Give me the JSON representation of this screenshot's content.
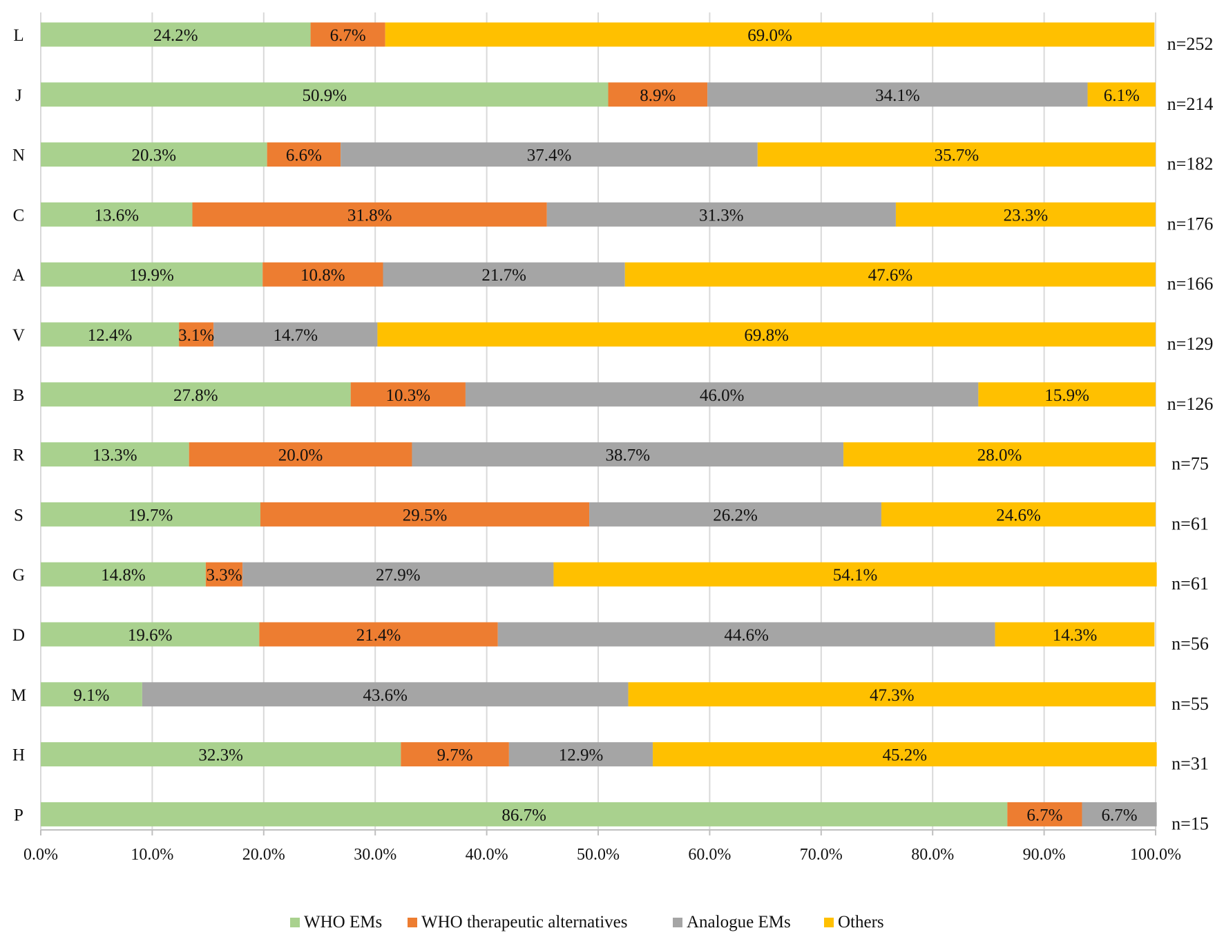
{
  "chart_data": {
    "type": "bar",
    "orientation": "horizontal",
    "stacked": true,
    "percent": true,
    "xlim": [
      0,
      100
    ],
    "xticks": [
      "0.0%",
      "10.0%",
      "20.0%",
      "30.0%",
      "40.0%",
      "50.0%",
      "60.0%",
      "70.0%",
      "80.0%",
      "90.0%",
      "100.0%"
    ],
    "grid": "vertical",
    "legend_position": "bottom",
    "series": [
      {
        "name": "WHO EMs",
        "color": "#a9d18e"
      },
      {
        "name": "WHO therapeutic alternatives",
        "color": "#ed7d31"
      },
      {
        "name": "Analogue EMs",
        "color": "#a5a5a5"
      },
      {
        "name": "Others",
        "color": "#ffc000"
      }
    ],
    "rows": [
      {
        "category": "L",
        "n": "n=252",
        "values": [
          24.2,
          6.7,
          0,
          69.0
        ],
        "labels": [
          "24.2%",
          "6.7%",
          "",
          "69.0%"
        ]
      },
      {
        "category": "J",
        "n": "n=214",
        "values": [
          50.9,
          8.9,
          34.1,
          6.1
        ],
        "labels": [
          "50.9%",
          "8.9%",
          "34.1%",
          "6.1%"
        ]
      },
      {
        "category": "N",
        "n": "n=182",
        "values": [
          20.3,
          6.6,
          37.4,
          35.7
        ],
        "labels": [
          "20.3%",
          "6.6%",
          "37.4%",
          "35.7%"
        ]
      },
      {
        "category": "C",
        "n": "n=176",
        "values": [
          13.6,
          31.8,
          31.3,
          23.3
        ],
        "labels": [
          "13.6%",
          "31.8%",
          "31.3%",
          "23.3%"
        ]
      },
      {
        "category": "A",
        "n": "n=166",
        "values": [
          19.9,
          10.8,
          21.7,
          47.6
        ],
        "labels": [
          "19.9%",
          "10.8%",
          "21.7%",
          "47.6%"
        ]
      },
      {
        "category": "V",
        "n": "n=129",
        "values": [
          12.4,
          3.1,
          14.7,
          69.8
        ],
        "labels": [
          "12.4%",
          "3.1%",
          "14.7%",
          "69.8%"
        ]
      },
      {
        "category": "B",
        "n": "n=126",
        "values": [
          27.8,
          10.3,
          46.0,
          15.9
        ],
        "labels": [
          "27.8%",
          "10.3%",
          "46.0%",
          "15.9%"
        ]
      },
      {
        "category": "R",
        "n": "n=75",
        "values": [
          13.3,
          20.0,
          38.7,
          28.0
        ],
        "labels": [
          "13.3%",
          "20.0%",
          "38.7%",
          "28.0%"
        ]
      },
      {
        "category": "S",
        "n": "n=61",
        "values": [
          19.7,
          29.5,
          26.2,
          24.6
        ],
        "labels": [
          "19.7%",
          "29.5%",
          "26.2%",
          "24.6%"
        ]
      },
      {
        "category": "G",
        "n": "n=61",
        "values": [
          14.8,
          3.3,
          27.9,
          54.1
        ],
        "labels": [
          "14.8%",
          "3.3%",
          "27.9%",
          "54.1%"
        ]
      },
      {
        "category": "D",
        "n": "n=56",
        "values": [
          19.6,
          21.4,
          44.6,
          14.3
        ],
        "labels": [
          "19.6%",
          "21.4%",
          "44.6%",
          "14.3%"
        ]
      },
      {
        "category": "M",
        "n": "n=55",
        "values": [
          9.1,
          0,
          43.6,
          47.3
        ],
        "labels": [
          "9.1%",
          "",
          "43.6%",
          "47.3%"
        ]
      },
      {
        "category": "H",
        "n": "n=31",
        "values": [
          32.3,
          9.7,
          12.9,
          45.2
        ],
        "labels": [
          "32.3%",
          "9.7%",
          "12.9%",
          "45.2%"
        ]
      },
      {
        "category": "P",
        "n": "n=15",
        "values": [
          86.7,
          6.7,
          6.7,
          0
        ],
        "labels": [
          "86.7%",
          "6.7%",
          "6.7%",
          ""
        ]
      }
    ]
  }
}
